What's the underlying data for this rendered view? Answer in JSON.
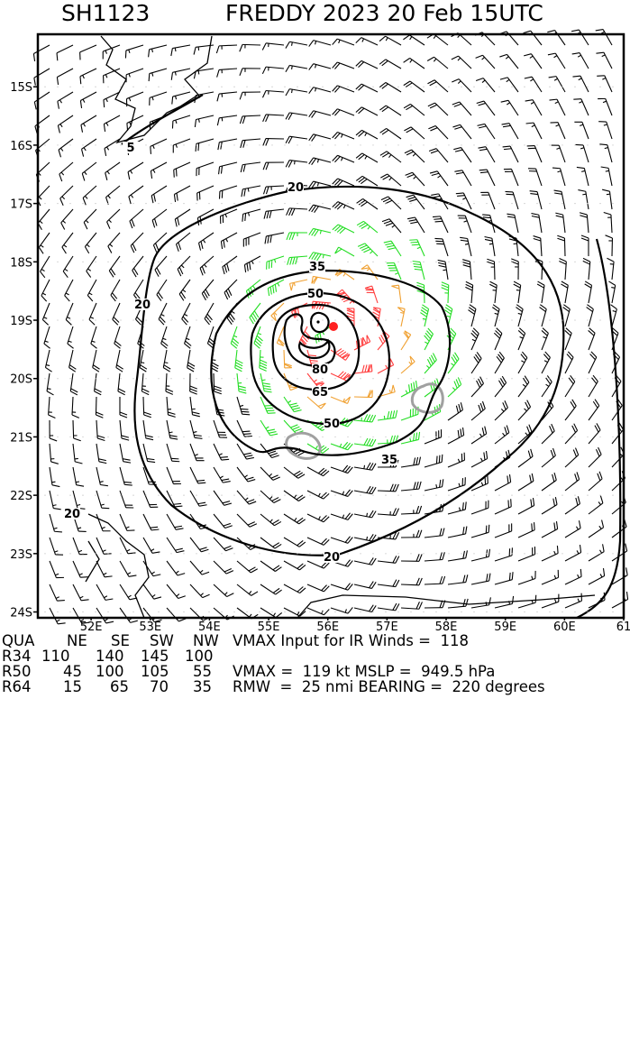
{
  "header": {
    "storm_id": "SH1123",
    "title": "FREDDY 2023 20 Feb 15UTC"
  },
  "map": {
    "lon_range": [
      51.1,
      61.0
    ],
    "lat_range": [
      -24.1,
      -14.1
    ],
    "lon_ticks": [
      "52E",
      "53E",
      "54E",
      "55E",
      "56E",
      "57E",
      "58E",
      "59E",
      "60E",
      "61"
    ],
    "lat_ticks": [
      "15S",
      "16S",
      "17S",
      "18S",
      "19S",
      "20S",
      "21S",
      "22S",
      "23S",
      "24S"
    ],
    "center": {
      "lon": 56.15,
      "lat": -19.2
    },
    "speed_colors": {
      "below_34": "#000000",
      "34_50": "#22dd22",
      "50_64": "#f0a030",
      "64_plus": "#ff3b3b"
    },
    "center_marker_color": "#ff2020",
    "island_color": "#a0a0a0",
    "contour_labels": [
      "5",
      "20",
      "20",
      "20",
      "20",
      "35",
      "35",
      "50",
      "50",
      "65",
      "80"
    ]
  },
  "table": {
    "headers": [
      "QUA",
      "NE",
      "SE",
      "SW",
      "NW"
    ],
    "rows": [
      [
        "R34",
        "110",
        "140",
        "145",
        "100"
      ],
      [
        "R50",
        "45",
        "100",
        "105",
        "55"
      ],
      [
        "R64",
        "15",
        "65",
        "70",
        "35"
      ]
    ]
  },
  "summary": {
    "line1": "VMAX Input for IR Winds =  118",
    "line2": "VMAX =  119 kt MSLP =  949.5 hPa",
    "line3": "RMW  =  25 nmi BEARING =  220 degrees"
  }
}
